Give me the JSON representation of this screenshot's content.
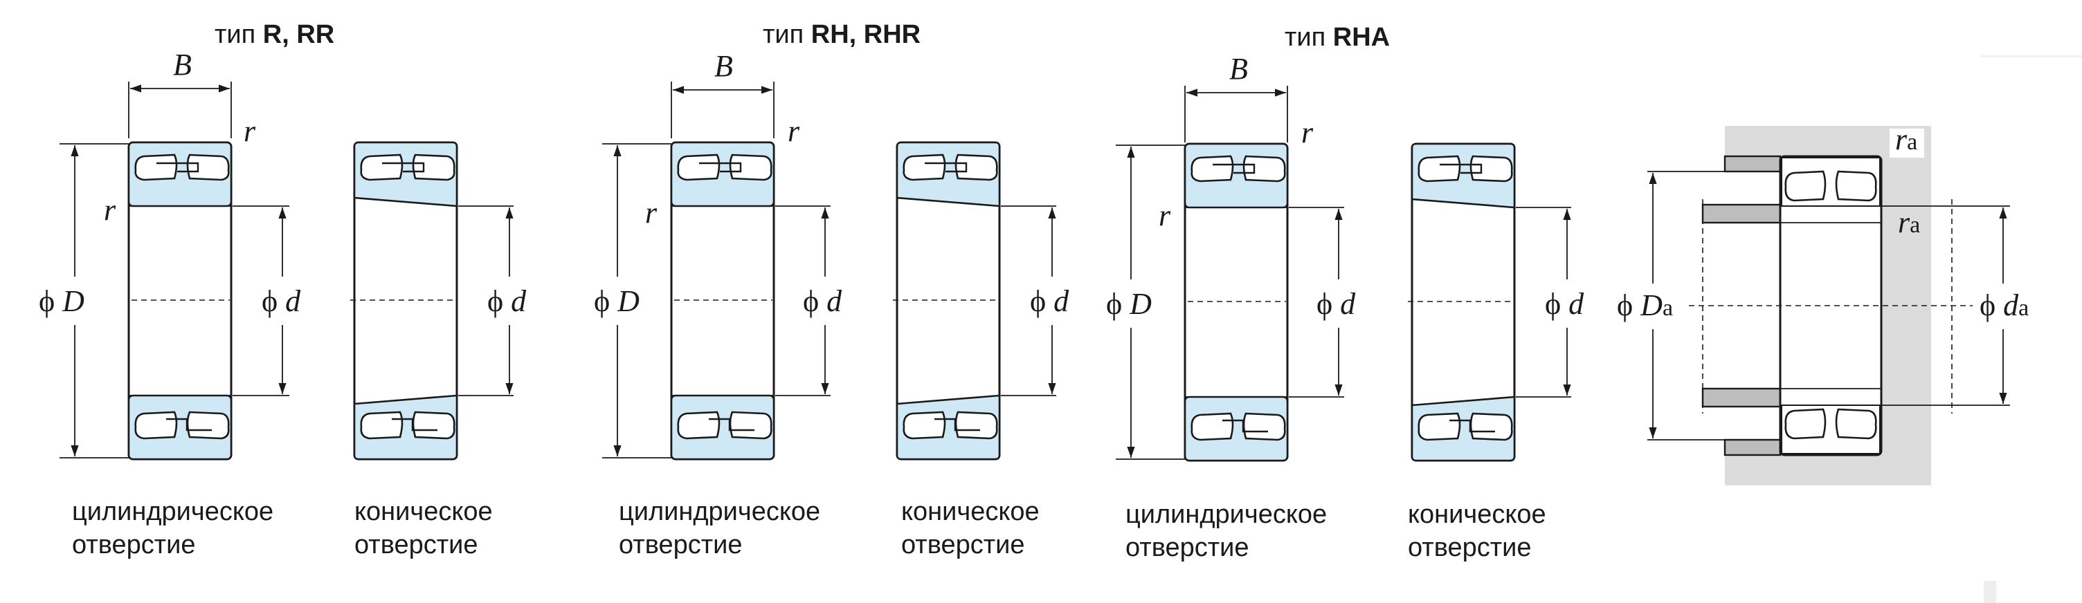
{
  "titles": {
    "t1": {
      "prefix": "тип ",
      "bold": "R, RR"
    },
    "t2": {
      "prefix": "тип ",
      "bold": "RH, RHR"
    },
    "t3": {
      "prefix": "тип ",
      "bold": "RHA"
    }
  },
  "captions": {
    "cyl_line1": "цилиндрическое",
    "cyl_line2": "отверстие",
    "con_line1": "коническое",
    "con_line2": "отверстие"
  },
  "symbols": {
    "B": "B",
    "r": "r",
    "phi": "ϕ",
    "D": "D",
    "d": "d",
    "Da": "D",
    "da": "d",
    "ra": "r",
    "a": "a"
  }
}
